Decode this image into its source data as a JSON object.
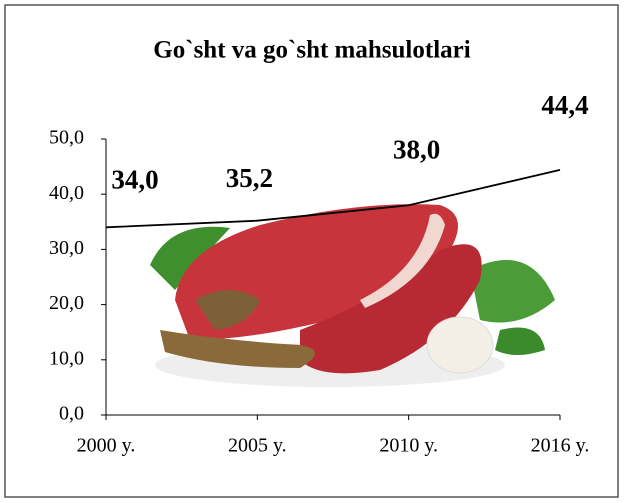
{
  "chart_data": {
    "type": "line",
    "title": "Go`sht va go`sht mahsulotlari",
    "categories": [
      "2000 y.",
      "2005 y.",
      "2010 y.",
      "2016 y."
    ],
    "values": [
      34.0,
      35.2,
      38.0,
      44.4
    ],
    "value_labels": [
      "34,0",
      "35,2",
      "38,0",
      "44,4"
    ],
    "color": "#000000",
    "ylim": [
      0,
      50
    ],
    "yticks": [
      {
        "value": 0,
        "label": "0,0"
      },
      {
        "value": 10,
        "label": "10,0"
      },
      {
        "value": 20,
        "label": "20,0"
      },
      {
        "value": 30,
        "label": "30,0"
      },
      {
        "value": 40,
        "label": "40,0"
      },
      {
        "value": 50,
        "label": "50,0"
      }
    ],
    "grid": false
  }
}
